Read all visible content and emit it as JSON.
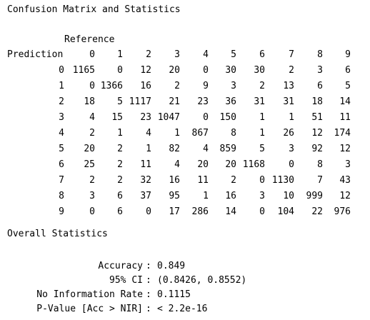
{
  "title": "Confusion Matrix and Statistics",
  "reference_label": "Reference",
  "prediction_label": "Prediction",
  "columns": [
    "0",
    "1",
    "2",
    "3",
    "4",
    "5",
    "6",
    "7",
    "8",
    "9"
  ],
  "rows": [
    {
      "label": "0",
      "values": [
        "1165",
        "0",
        "12",
        "20",
        "0",
        "30",
        "30",
        "2",
        "3",
        "6"
      ]
    },
    {
      "label": "1",
      "values": [
        "0",
        "1366",
        "16",
        "2",
        "9",
        "3",
        "2",
        "13",
        "6",
        "5"
      ]
    },
    {
      "label": "2",
      "values": [
        "18",
        "5",
        "1117",
        "21",
        "23",
        "36",
        "31",
        "31",
        "18",
        "14"
      ]
    },
    {
      "label": "3",
      "values": [
        "4",
        "15",
        "23",
        "1047",
        "0",
        "150",
        "1",
        "1",
        "51",
        "11"
      ]
    },
    {
      "label": "4",
      "values": [
        "2",
        "1",
        "4",
        "1",
        "867",
        "8",
        "1",
        "26",
        "12",
        "174"
      ]
    },
    {
      "label": "5",
      "values": [
        "20",
        "2",
        "1",
        "82",
        "4",
        "859",
        "5",
        "3",
        "92",
        "12"
      ]
    },
    {
      "label": "6",
      "values": [
        "25",
        "2",
        "11",
        "4",
        "20",
        "20",
        "1168",
        "0",
        "8",
        "3"
      ]
    },
    {
      "label": "7",
      "values": [
        "2",
        "2",
        "32",
        "16",
        "11",
        "2",
        "0",
        "1130",
        "7",
        "43"
      ]
    },
    {
      "label": "8",
      "values": [
        "3",
        "6",
        "37",
        "95",
        "1",
        "16",
        "3",
        "10",
        "999",
        "12"
      ]
    },
    {
      "label": "9",
      "values": [
        "0",
        "6",
        "0",
        "17",
        "286",
        "14",
        "0",
        "104",
        "22",
        "976"
      ]
    }
  ],
  "overall_title": "Overall Statistics",
  "stats": [
    {
      "label": "Accuracy",
      "value": "0.849"
    },
    {
      "label": "95% CI",
      "value": "(0.8426, 0.8552)"
    },
    {
      "label": "No Information Rate",
      "value": "0.1115"
    },
    {
      "label": "P-Value [Acc > NIR]",
      "value": "< 2.2e-16"
    }
  ]
}
